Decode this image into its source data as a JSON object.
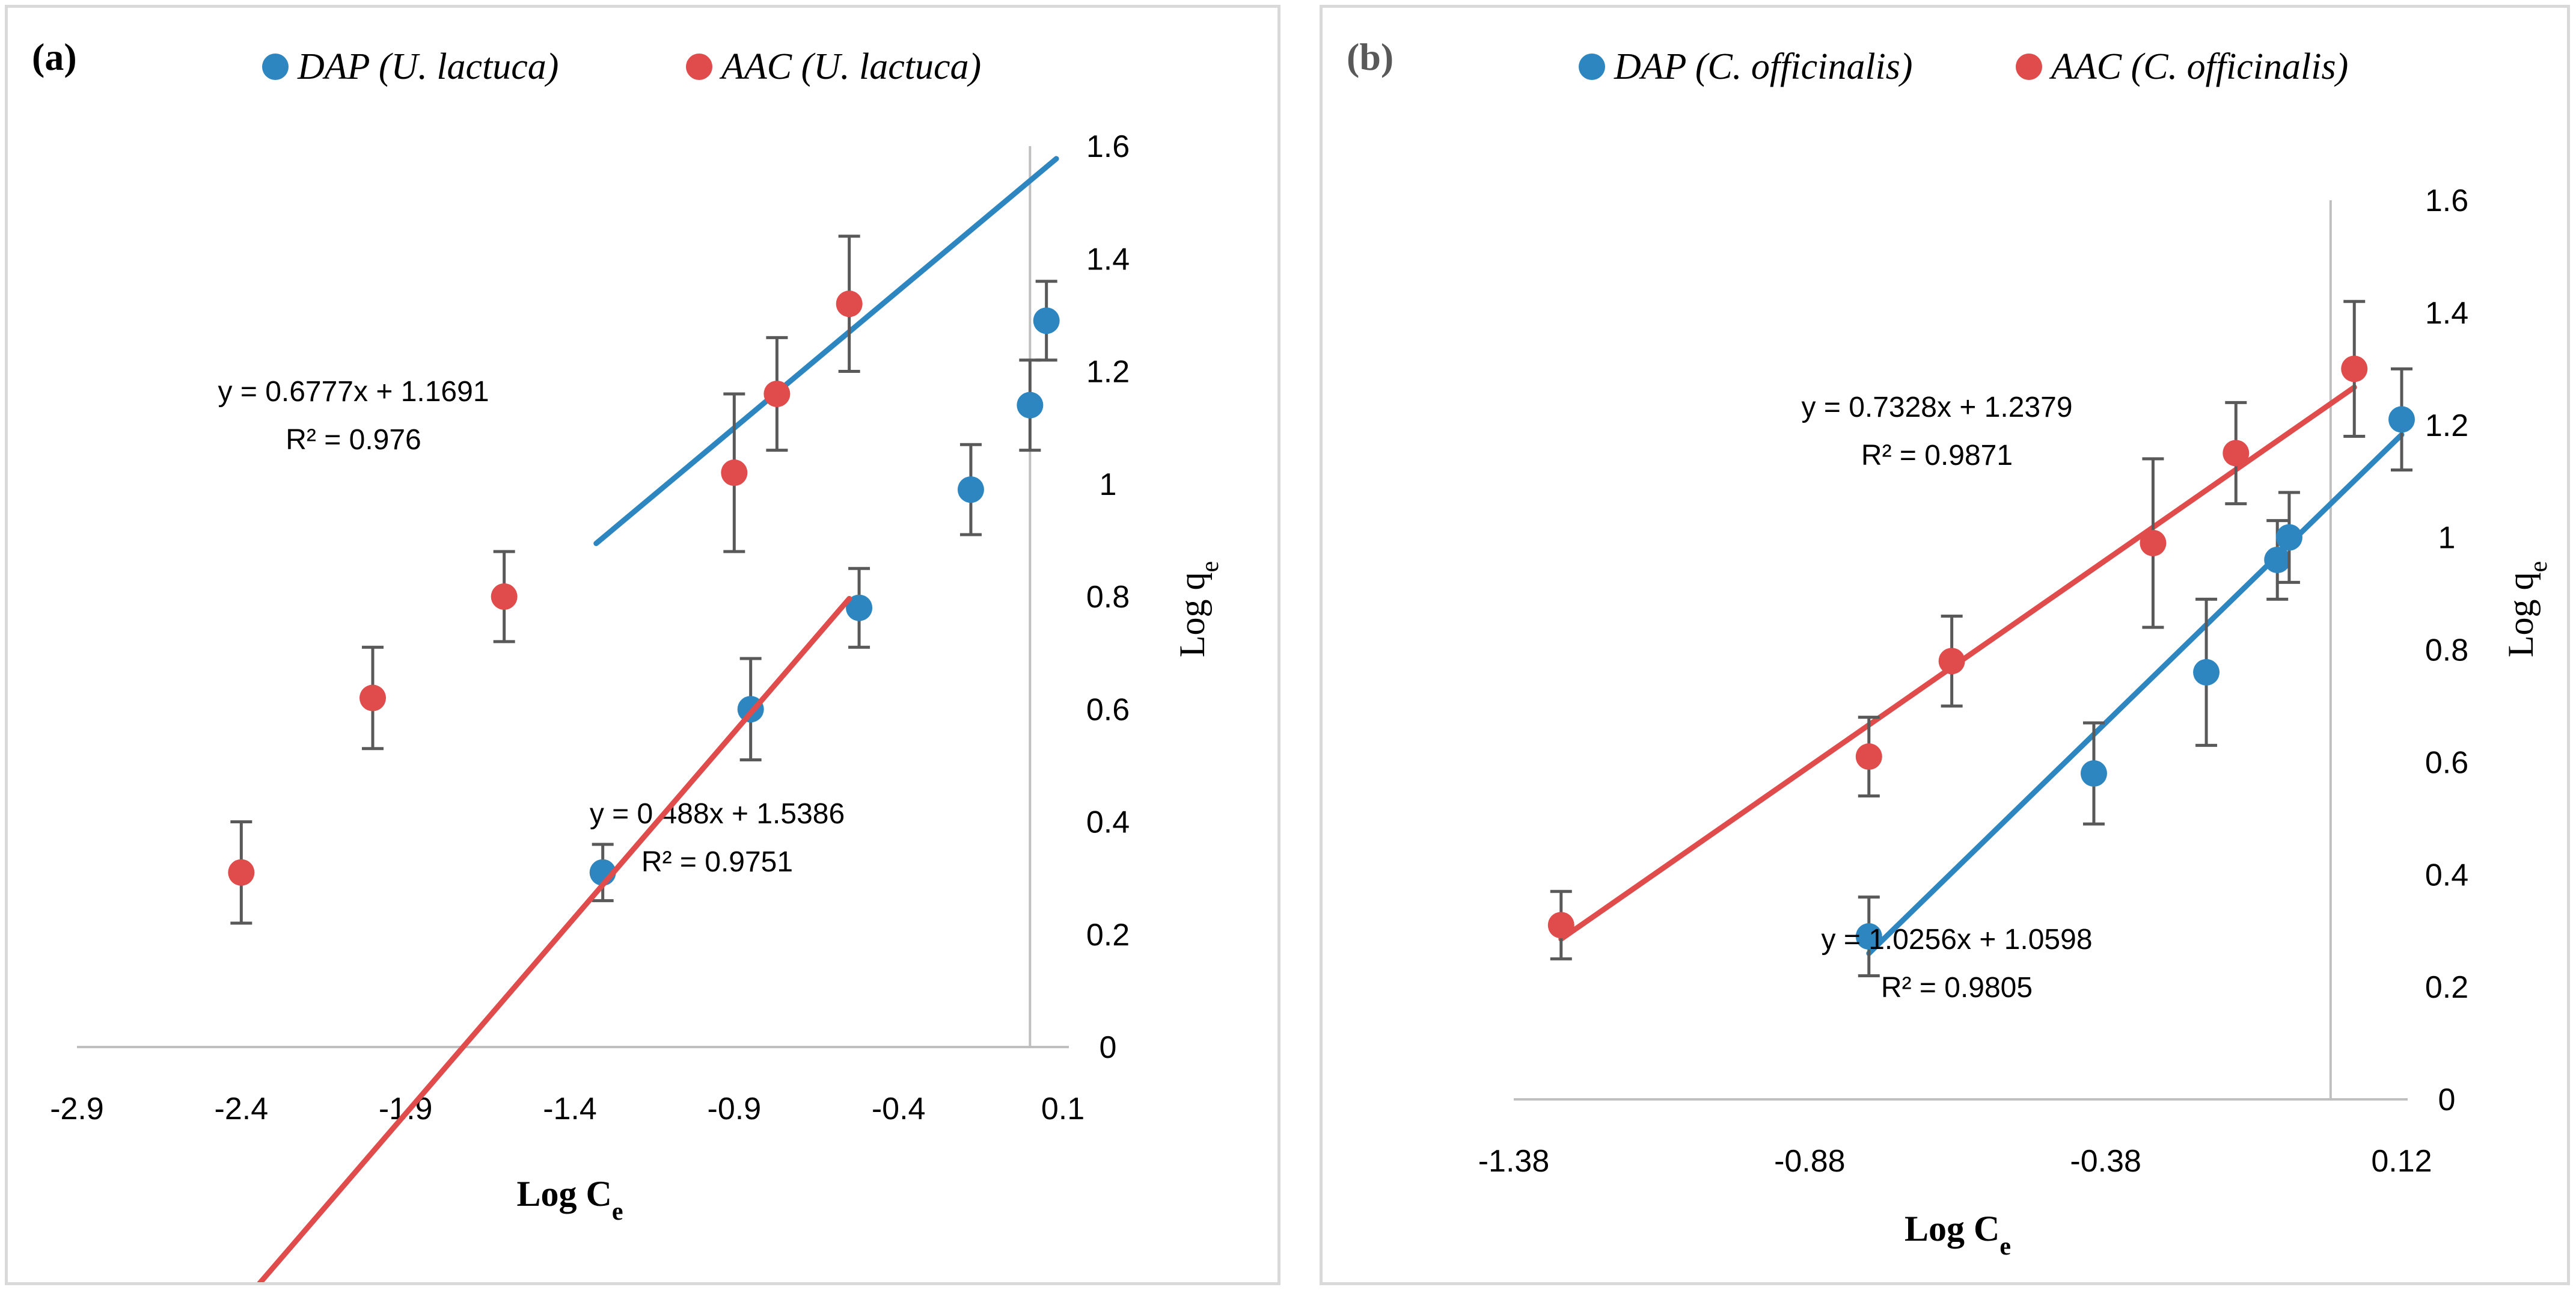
{
  "chart_data": [
    {
      "type": "scatter",
      "panel_label": "(a)",
      "xlabel": "Log C",
      "xlabel_sub": "e",
      "ylabel": "Log q",
      "ylabel_sub": "e",
      "xlim": [
        -2.9,
        0.1
      ],
      "ylim": [
        0,
        1.6
      ],
      "x_ticks": [
        -2.9,
        -2.4,
        -1.9,
        -1.4,
        -0.9,
        -0.4,
        0.1
      ],
      "x_tick_labels": [
        "-2.9",
        "-2.4",
        "-1.9",
        "-1.4",
        "-0.9",
        "-0.4",
        "0.1"
      ],
      "y_ticks": [
        0,
        0.2,
        0.4,
        0.6,
        0.8,
        1.0,
        1.2,
        1.4,
        1.6
      ],
      "y_tick_labels": [
        "0",
        "0.2",
        "0.4",
        "0.6",
        "0.8",
        "1",
        "1.2",
        "1.4",
        "1.6"
      ],
      "y_axis_at_x": 0,
      "legend_position": "top",
      "series": [
        {
          "name": "DAP (U. lactuca)",
          "color": "#2e86c1",
          "x": [
            -1.3,
            -0.85,
            -0.52,
            -0.18,
            0.0,
            0.05
          ],
          "y": [
            0.31,
            0.6,
            0.78,
            0.99,
            1.14,
            1.29
          ],
          "error": [
            0.05,
            0.09,
            0.07,
            0.08,
            0.08,
            0.07
          ],
          "trendline": {
            "slope": 0.488,
            "intercept": 1.5386,
            "x_range": [
              -1.32,
              0.08
            ]
          },
          "equation": "y = 0.488x + 1.5386",
          "r2": "R² = 0.9751"
        },
        {
          "name": "AAC (U. lactuca)",
          "color": "#e04b4b",
          "x": [
            -2.4,
            -2.0,
            -1.6,
            -0.9,
            -0.77,
            -0.55
          ],
          "y": [
            0.31,
            0.62,
            0.8,
            1.02,
            1.16,
            1.32
          ],
          "error": [
            0.09,
            0.09,
            0.08,
            0.14,
            0.1,
            0.12
          ],
          "trendline": {
            "slope": 0.6777,
            "intercept": 1.1691,
            "x_range": [
              -2.4,
              -0.55
            ]
          },
          "equation": "y = 0.6777x + 1.1691",
          "r2": "R² = 0.976"
        }
      ]
    },
    {
      "type": "scatter",
      "panel_label": "(b)",
      "xlabel": "Log C",
      "xlabel_sub": "e",
      "ylabel": "Log q",
      "ylabel_sub": "e",
      "xlim": [
        -1.38,
        0.12
      ],
      "ylim": [
        0,
        1.6
      ],
      "x_ticks": [
        -1.38,
        -0.88,
        -0.38,
        0.12
      ],
      "x_tick_labels": [
        "-1.38",
        "-0.88",
        "-0.38",
        "0.12"
      ],
      "y_ticks": [
        0,
        0.2,
        0.4,
        0.6,
        0.8,
        1.0,
        1.2,
        1.4,
        1.6
      ],
      "y_tick_labels": [
        "0",
        "0.2",
        "0.4",
        "0.6",
        "0.8",
        "1",
        "1.2",
        "1.4",
        "1.6"
      ],
      "y_axis_at_x": 0,
      "legend_position": "top",
      "series": [
        {
          "name": "DAP (C. officinalis)",
          "color": "#2e86c1",
          "x": [
            -0.78,
            -0.4,
            -0.21,
            -0.09,
            -0.07,
            0.12
          ],
          "y": [
            0.29,
            0.58,
            0.76,
            0.96,
            1.0,
            1.21
          ],
          "error": [
            0.07,
            0.09,
            0.13,
            0.07,
            0.08,
            0.09
          ],
          "trendline": {
            "slope": 1.0256,
            "intercept": 1.0598,
            "x_range": [
              -0.78,
              0.12
            ]
          },
          "equation": "y = 1.0256x + 1.0598",
          "r2": "R² = 0.9805"
        },
        {
          "name": "AAC (C. officinalis)",
          "color": "#e04b4b",
          "x": [
            -1.3,
            -0.78,
            -0.64,
            -0.3,
            -0.16,
            0.04
          ],
          "y": [
            0.31,
            0.61,
            0.78,
            0.99,
            1.15,
            1.3
          ],
          "error": [
            0.06,
            0.07,
            0.08,
            0.15,
            0.09,
            0.12
          ],
          "trendline": {
            "slope": 0.7328,
            "intercept": 1.2379,
            "x_range": [
              -1.3,
              0.04
            ]
          },
          "equation": "y = 0.7328x + 1.2379",
          "r2": "R² = 0.9871"
        }
      ]
    }
  ]
}
